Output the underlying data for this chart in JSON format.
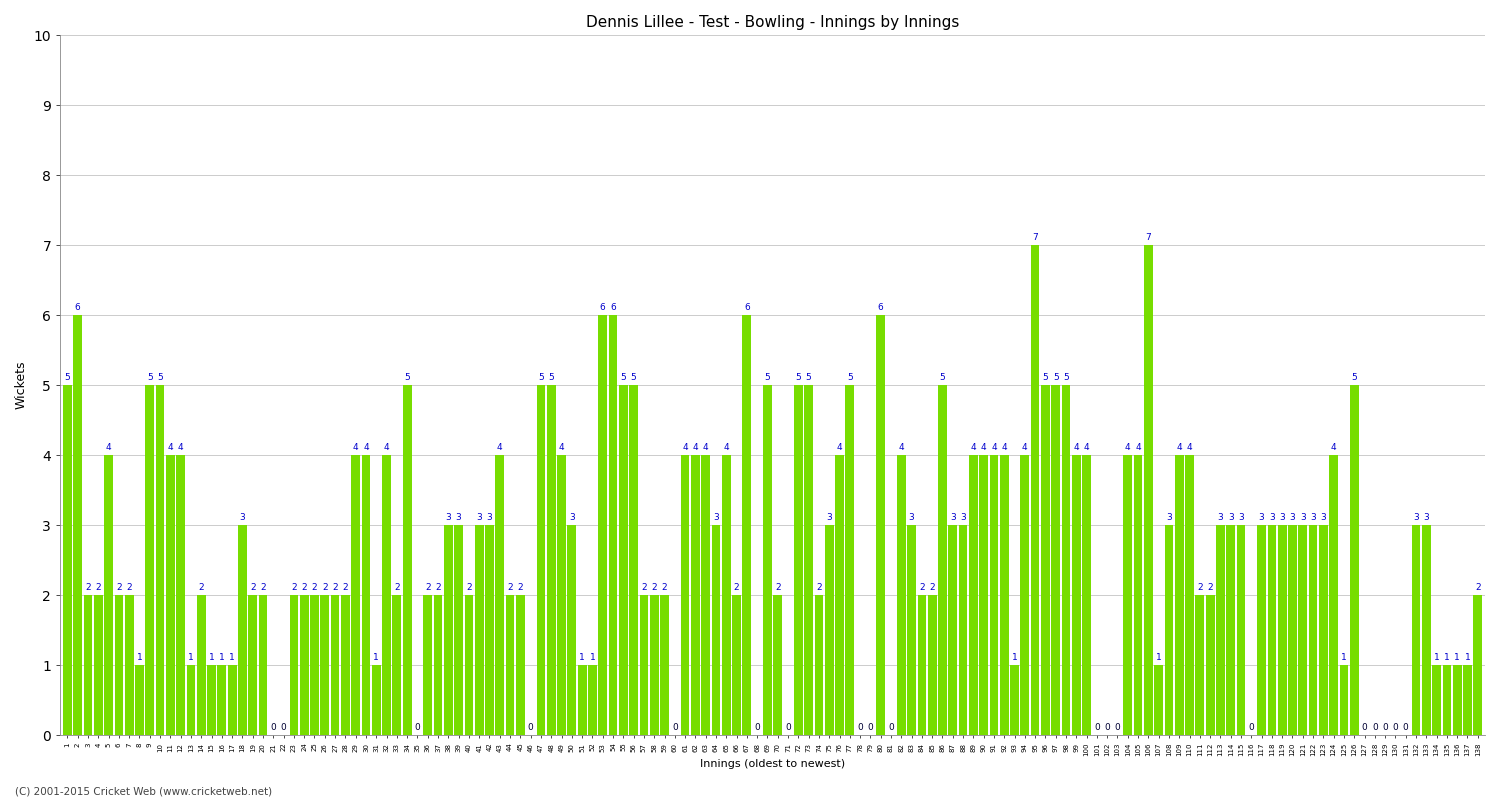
{
  "title": "Dennis Lillee - Test - Bowling - Innings by Innings",
  "xlabel": "Innings (oldest to newest)",
  "ylabel": "Wickets",
  "ylim": [
    0,
    10
  ],
  "yticks": [
    0,
    1,
    2,
    3,
    4,
    5,
    6,
    7,
    8,
    9,
    10
  ],
  "bar_color": "#77dd00",
  "label_color": "#0000cc",
  "zero_label_color": "#000033",
  "background_color": "#ffffff",
  "grid_color": "#cccccc",
  "wickets": [
    5,
    6,
    2,
    2,
    4,
    2,
    2,
    1,
    5,
    5,
    4,
    4,
    1,
    2,
    1,
    1,
    1,
    3,
    2,
    2,
    0,
    0,
    2,
    2,
    2,
    2,
    2,
    2,
    4,
    4,
    1,
    4,
    2,
    5,
    0,
    2,
    2,
    3,
    3,
    2,
    3,
    3,
    4,
    2,
    2,
    0,
    5,
    5,
    4,
    3,
    1,
    1,
    6,
    6,
    5,
    5,
    2,
    2,
    2,
    0,
    4,
    4,
    4,
    3,
    4,
    2,
    6,
    0,
    5,
    2,
    0,
    5,
    5,
    2,
    3,
    4,
    5,
    0,
    0,
    6,
    0,
    4,
    3,
    2,
    2,
    5,
    3,
    3,
    4,
    4,
    4,
    4,
    1,
    4,
    7,
    5,
    5,
    5,
    4,
    4,
    0,
    0,
    0,
    4,
    4,
    7,
    1,
    3,
    4,
    4,
    2,
    2,
    3,
    3,
    3,
    0,
    3,
    3,
    3,
    3,
    3,
    3,
    3,
    4,
    1,
    5,
    0,
    0,
    0,
    0,
    0,
    3,
    3,
    1,
    1,
    1,
    1,
    2
  ],
  "row1_labels": [
    "1",
    "2",
    "3",
    "4",
    "5",
    "6",
    "7",
    "8",
    "9",
    "10",
    "11",
    "12",
    "13",
    "14",
    "15",
    "16",
    "17",
    "18",
    "19",
    "20",
    "21",
    "22",
    "23",
    "24",
    "25",
    "26",
    "27",
    "28",
    "29",
    "30",
    "31",
    "32",
    "33",
    "34",
    "35",
    "36",
    "37",
    "38",
    "39",
    "40",
    "41",
    "42",
    "43",
    "44",
    "45",
    "46",
    "47",
    "48",
    "49",
    "50",
    "51",
    "52",
    "53",
    "54",
    "55",
    "56",
    "57",
    "58",
    "59",
    "60",
    "61",
    "62",
    "63",
    "64",
    "65",
    "66",
    "67",
    "68",
    "69",
    "70",
    "71",
    "72",
    "73",
    "74",
    "75",
    "76",
    "77",
    "78",
    "79",
    "80",
    "81",
    "82",
    "83",
    "84",
    "85",
    "86",
    "87",
    "88",
    "89",
    "90",
    "91",
    "92",
    "93",
    "94",
    "95",
    "96",
    "97",
    "98",
    "99",
    "100",
    "101",
    "102",
    "103",
    "104",
    "105",
    "106",
    "107",
    "108",
    "109",
    "110",
    "111",
    "112",
    "113",
    "114",
    "115",
    "116",
    "117",
    "118",
    "119",
    "120",
    "121",
    "122",
    "123",
    "124",
    "125",
    "126",
    "127",
    "128",
    "129",
    "130",
    "131",
    "132",
    "133",
    "134",
    "135",
    "136",
    "137",
    "138"
  ],
  "copyright": "(C) 2001-2015 Cricket Web (www.cricketweb.net)",
  "title_fontsize": 11,
  "ylabel_fontsize": 9,
  "xlabel_fontsize": 8,
  "annot_fontsize": 6.5,
  "tick_fontsize": 5,
  "copyright_fontsize": 7.5
}
